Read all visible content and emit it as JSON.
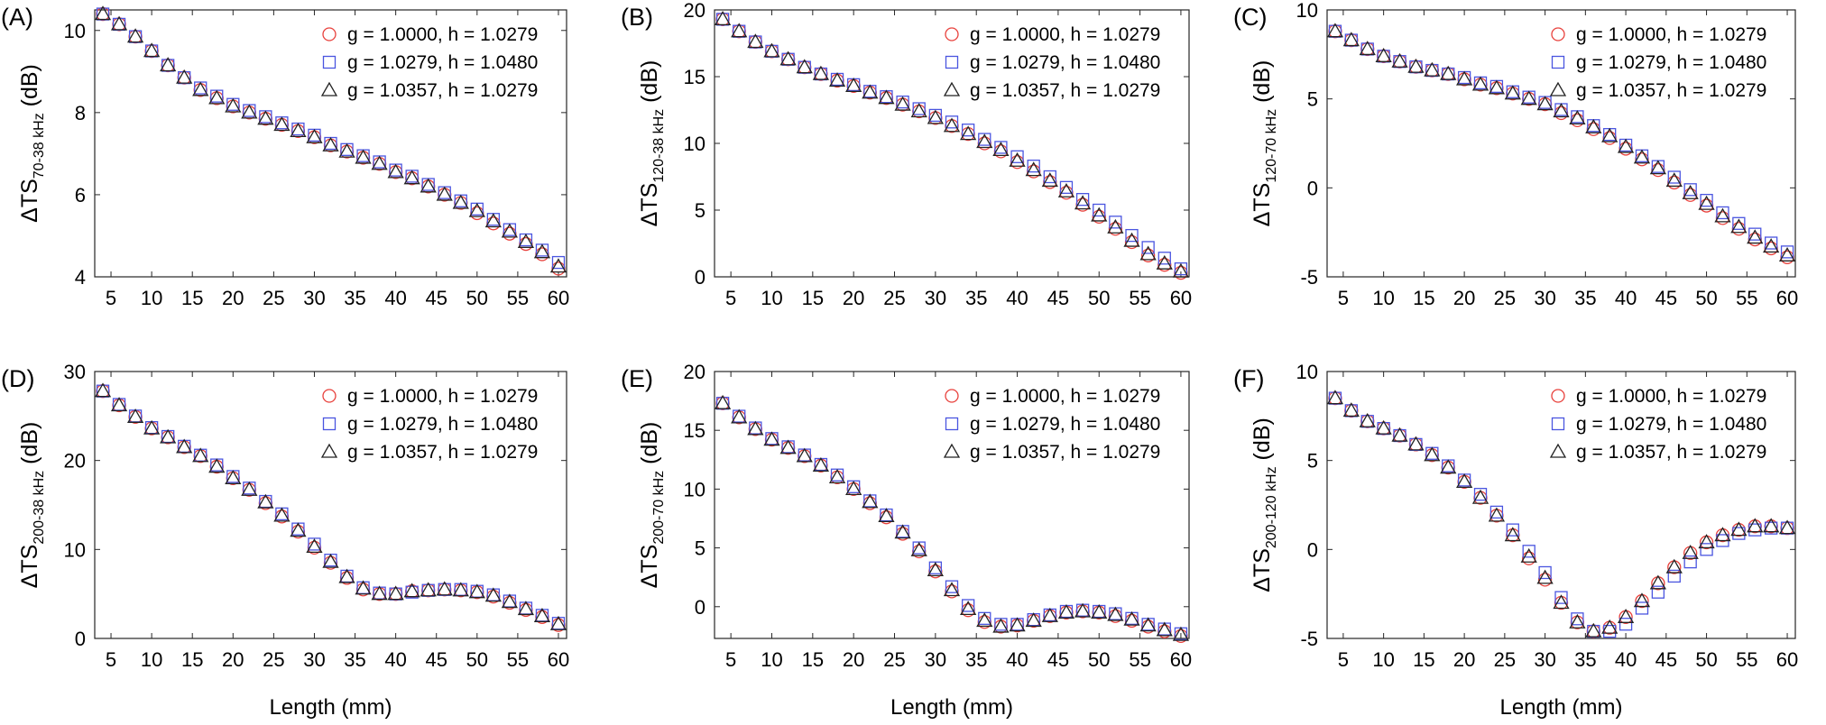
{
  "legend": [
    {
      "label": "g = 1.0000, h = 1.0279",
      "color": "#e8413c",
      "marker": "circle"
    },
    {
      "label": "g = 1.0279, h = 1.0480",
      "color": "#4a55e0",
      "marker": "square"
    },
    {
      "label": "g = 1.0357, h = 1.0279",
      "color": "#222222",
      "marker": "triangle"
    }
  ],
  "chart_data": [
    {
      "type": "scatter",
      "panel": "(A)",
      "xlabel": "",
      "ylabel_main": "ΔTS",
      "ylabel_sub": "70-38 kHz",
      "ylabel_unit": " (dB)",
      "xlim": [
        3,
        61
      ],
      "ylim": [
        4,
        10.5
      ],
      "xticks": [
        5,
        10,
        15,
        20,
        25,
        30,
        35,
        40,
        45,
        50,
        55,
        60
      ],
      "yticks": [
        4,
        6,
        8,
        10
      ],
      "x": [
        4,
        6,
        8,
        10,
        12,
        14,
        16,
        18,
        20,
        22,
        24,
        26,
        28,
        30,
        32,
        34,
        36,
        38,
        40,
        42,
        44,
        46,
        48,
        50,
        52,
        54,
        56,
        58,
        60
      ],
      "series": [
        {
          "name": "g = 1.0000, h = 1.0279",
          "values": [
            10.4,
            10.15,
            9.85,
            9.5,
            9.15,
            8.85,
            8.55,
            8.35,
            8.15,
            8.0,
            7.85,
            7.7,
            7.55,
            7.4,
            7.2,
            7.05,
            6.9,
            6.75,
            6.55,
            6.4,
            6.2,
            6.0,
            5.8,
            5.55,
            5.3,
            5.05,
            4.8,
            4.55,
            4.2
          ]
        },
        {
          "name": "g = 1.0279, h = 1.0480",
          "values": [
            10.4,
            10.15,
            9.85,
            9.5,
            9.15,
            8.85,
            8.6,
            8.4,
            8.2,
            8.05,
            7.9,
            7.75,
            7.6,
            7.45,
            7.25,
            7.1,
            6.95,
            6.8,
            6.6,
            6.45,
            6.25,
            6.05,
            5.85,
            5.65,
            5.4,
            5.15,
            4.9,
            4.65,
            4.35
          ]
        },
        {
          "name": "g = 1.0357, h = 1.0279",
          "values": [
            10.4,
            10.15,
            9.85,
            9.5,
            9.15,
            8.85,
            8.55,
            8.35,
            8.15,
            8.0,
            7.85,
            7.7,
            7.55,
            7.4,
            7.2,
            7.05,
            6.9,
            6.75,
            6.55,
            6.4,
            6.2,
            6.0,
            5.8,
            5.6,
            5.35,
            5.1,
            4.85,
            4.6,
            4.25
          ]
        }
      ]
    },
    {
      "type": "scatter",
      "panel": "(B)",
      "xlabel": "",
      "ylabel_main": "ΔTS",
      "ylabel_sub": "120-38 kHz",
      "ylabel_unit": " (dB)",
      "xlim": [
        3,
        61
      ],
      "ylim": [
        0,
        20
      ],
      "xticks": [
        5,
        10,
        15,
        20,
        25,
        30,
        35,
        40,
        45,
        50,
        55,
        60
      ],
      "yticks": [
        0,
        5,
        10,
        15,
        20
      ],
      "x": [
        4,
        6,
        8,
        10,
        12,
        14,
        16,
        18,
        20,
        22,
        24,
        26,
        28,
        30,
        32,
        34,
        36,
        38,
        40,
        42,
        44,
        46,
        48,
        50,
        52,
        54,
        56,
        58,
        60
      ],
      "series": [
        {
          "name": "g = 1.0000, h = 1.0279",
          "values": [
            19.3,
            18.4,
            17.6,
            16.9,
            16.3,
            15.7,
            15.2,
            14.7,
            14.3,
            13.8,
            13.4,
            12.9,
            12.4,
            11.9,
            11.3,
            10.7,
            10.0,
            9.4,
            8.6,
            7.9,
            7.1,
            6.3,
            5.4,
            4.5,
            3.6,
            2.6,
            1.6,
            0.9,
            0.3
          ]
        },
        {
          "name": "g = 1.0279, h = 1.0480",
          "values": [
            19.3,
            18.4,
            17.6,
            16.9,
            16.3,
            15.7,
            15.2,
            14.8,
            14.4,
            13.9,
            13.5,
            13.1,
            12.6,
            12.1,
            11.6,
            11.0,
            10.3,
            9.7,
            9.0,
            8.3,
            7.5,
            6.7,
            5.8,
            5.0,
            4.1,
            3.1,
            2.2,
            1.4,
            0.6
          ]
        },
        {
          "name": "g = 1.0357, h = 1.0279",
          "values": [
            19.3,
            18.4,
            17.6,
            16.9,
            16.3,
            15.7,
            15.2,
            14.7,
            14.3,
            13.8,
            13.4,
            12.9,
            12.4,
            11.9,
            11.3,
            10.7,
            10.1,
            9.5,
            8.7,
            8.0,
            7.2,
            6.4,
            5.5,
            4.6,
            3.7,
            2.7,
            1.7,
            1.0,
            0.4
          ]
        }
      ]
    },
    {
      "type": "scatter",
      "panel": "(C)",
      "xlabel": "",
      "ylabel_main": "ΔTS",
      "ylabel_sub": "120-70 kHz",
      "ylabel_unit": " (dB)",
      "xlim": [
        3,
        61
      ],
      "ylim": [
        -5,
        10
      ],
      "xticks": [
        5,
        10,
        15,
        20,
        25,
        30,
        35,
        40,
        45,
        50,
        55,
        60
      ],
      "yticks": [
        -5,
        0,
        5,
        10
      ],
      "x": [
        4,
        6,
        8,
        10,
        12,
        14,
        16,
        18,
        20,
        22,
        24,
        26,
        28,
        30,
        32,
        34,
        36,
        38,
        40,
        42,
        44,
        46,
        48,
        50,
        52,
        54,
        56,
        58,
        60
      ],
      "series": [
        {
          "name": "g = 1.0000, h = 1.0279",
          "values": [
            8.8,
            8.3,
            7.8,
            7.4,
            7.1,
            6.8,
            6.6,
            6.4,
            6.1,
            5.8,
            5.6,
            5.3,
            5.0,
            4.7,
            4.2,
            3.8,
            3.3,
            2.8,
            2.2,
            1.6,
            1.0,
            0.3,
            -0.4,
            -1.0,
            -1.7,
            -2.3,
            -2.9,
            -3.4,
            -3.9
          ]
        },
        {
          "name": "g = 1.0279, h = 1.0480",
          "values": [
            8.8,
            8.3,
            7.8,
            7.4,
            7.1,
            6.8,
            6.6,
            6.4,
            6.2,
            5.9,
            5.7,
            5.4,
            5.1,
            4.8,
            4.4,
            4.0,
            3.5,
            3.0,
            2.4,
            1.8,
            1.2,
            0.6,
            -0.1,
            -0.7,
            -1.4,
            -2.0,
            -2.6,
            -3.1,
            -3.6
          ]
        },
        {
          "name": "g = 1.0357, h = 1.0279",
          "values": [
            8.8,
            8.3,
            7.8,
            7.4,
            7.1,
            6.8,
            6.6,
            6.4,
            6.1,
            5.8,
            5.6,
            5.3,
            5.0,
            4.7,
            4.3,
            3.9,
            3.4,
            2.9,
            2.3,
            1.7,
            1.1,
            0.4,
            -0.3,
            -0.9,
            -1.6,
            -2.2,
            -2.8,
            -3.3,
            -3.8
          ]
        }
      ]
    },
    {
      "type": "scatter",
      "panel": "(D)",
      "xlabel": "Length (mm)",
      "ylabel_main": "ΔTS",
      "ylabel_sub": "200-38 kHz",
      "ylabel_unit": " (dB)",
      "xlim": [
        3,
        61
      ],
      "ylim": [
        0,
        30
      ],
      "xticks": [
        5,
        10,
        15,
        20,
        25,
        30,
        35,
        40,
        45,
        50,
        55,
        60
      ],
      "yticks": [
        0,
        10,
        20,
        30
      ],
      "x": [
        4,
        6,
        8,
        10,
        12,
        14,
        16,
        18,
        20,
        22,
        24,
        26,
        28,
        30,
        32,
        34,
        36,
        38,
        40,
        42,
        44,
        46,
        48,
        50,
        52,
        54,
        56,
        58,
        60
      ],
      "series": [
        {
          "name": "g = 1.0000, h = 1.0279",
          "values": [
            27.8,
            26.2,
            24.9,
            23.6,
            22.6,
            21.5,
            20.5,
            19.3,
            18.0,
            16.7,
            15.2,
            13.7,
            12.0,
            10.2,
            8.5,
            6.8,
            5.5,
            5.0,
            5.0,
            5.3,
            5.4,
            5.5,
            5.4,
            5.2,
            4.7,
            4.0,
            3.2,
            2.4,
            1.5
          ]
        },
        {
          "name": "g = 1.0279, h = 1.0480",
          "values": [
            27.8,
            26.3,
            25.0,
            23.7,
            22.7,
            21.6,
            20.6,
            19.5,
            18.2,
            16.9,
            15.4,
            14.0,
            12.3,
            10.6,
            8.8,
            7.0,
            5.7,
            5.1,
            5.0,
            5.2,
            5.4,
            5.5,
            5.5,
            5.3,
            4.9,
            4.2,
            3.4,
            2.6,
            1.7
          ]
        },
        {
          "name": "g = 1.0357, h = 1.0279",
          "values": [
            27.8,
            26.2,
            24.9,
            23.6,
            22.6,
            21.5,
            20.5,
            19.3,
            18.0,
            16.7,
            15.3,
            13.8,
            12.1,
            10.3,
            8.6,
            6.9,
            5.6,
            5.0,
            5.0,
            5.3,
            5.4,
            5.5,
            5.4,
            5.2,
            4.8,
            4.1,
            3.3,
            2.5,
            1.6
          ]
        }
      ]
    },
    {
      "type": "scatter",
      "panel": "(E)",
      "xlabel": "Length (mm)",
      "ylabel_main": "ΔTS",
      "ylabel_sub": "200-70 kHz",
      "ylabel_unit": " (dB)",
      "xlim": [
        3,
        61
      ],
      "ylim": [
        -2.7,
        20
      ],
      "xticks": [
        5,
        10,
        15,
        20,
        25,
        30,
        35,
        40,
        45,
        50,
        55,
        60
      ],
      "yticks": [
        0,
        5,
        10,
        15,
        20
      ],
      "x": [
        4,
        6,
        8,
        10,
        12,
        14,
        16,
        18,
        20,
        22,
        24,
        26,
        28,
        30,
        32,
        34,
        36,
        38,
        40,
        42,
        44,
        46,
        48,
        50,
        52,
        54,
        56,
        58,
        60
      ],
      "series": [
        {
          "name": "g = 1.0000, h = 1.0279",
          "values": [
            17.3,
            16.1,
            15.1,
            14.2,
            13.5,
            12.8,
            12.0,
            11.0,
            10.0,
            8.8,
            7.6,
            6.2,
            4.7,
            3.0,
            1.3,
            -0.3,
            -1.3,
            -1.7,
            -1.6,
            -1.2,
            -0.8,
            -0.5,
            -0.4,
            -0.5,
            -0.8,
            -1.2,
            -1.7,
            -2.1,
            -2.5
          ]
        },
        {
          "name": "g = 1.0279, h = 1.0480",
          "values": [
            17.3,
            16.2,
            15.2,
            14.3,
            13.6,
            12.9,
            12.1,
            11.2,
            10.2,
            9.0,
            7.8,
            6.4,
            5.0,
            3.3,
            1.7,
            0.1,
            -1.0,
            -1.5,
            -1.5,
            -1.1,
            -0.7,
            -0.4,
            -0.3,
            -0.4,
            -0.6,
            -1.0,
            -1.5,
            -1.9,
            -2.3
          ]
        },
        {
          "name": "g = 1.0357, h = 1.0279",
          "values": [
            17.3,
            16.1,
            15.1,
            14.2,
            13.5,
            12.8,
            12.0,
            11.0,
            10.0,
            8.9,
            7.7,
            6.3,
            4.8,
            3.1,
            1.4,
            -0.2,
            -1.2,
            -1.7,
            -1.6,
            -1.2,
            -0.8,
            -0.5,
            -0.4,
            -0.5,
            -0.7,
            -1.1,
            -1.6,
            -2.0,
            -2.4
          ]
        }
      ]
    },
    {
      "type": "scatter",
      "panel": "(F)",
      "xlabel": "Length (mm)",
      "ylabel_main": "ΔTS",
      "ylabel_sub": "200-120 kHz",
      "ylabel_unit": " (dB)",
      "xlim": [
        3,
        61
      ],
      "ylim": [
        -5,
        10
      ],
      "xticks": [
        5,
        10,
        15,
        20,
        25,
        30,
        35,
        40,
        45,
        50,
        55,
        60
      ],
      "yticks": [
        -5,
        0,
        5,
        10
      ],
      "x": [
        4,
        6,
        8,
        10,
        12,
        14,
        16,
        18,
        20,
        22,
        24,
        26,
        28,
        30,
        32,
        34,
        36,
        38,
        40,
        42,
        44,
        46,
        48,
        50,
        52,
        54,
        56,
        58,
        60
      ],
      "series": [
        {
          "name": "g = 1.0000, h = 1.0279",
          "values": [
            8.5,
            7.8,
            7.2,
            6.8,
            6.4,
            5.9,
            5.3,
            4.6,
            3.8,
            2.9,
            1.9,
            0.8,
            -0.5,
            -1.7,
            -3.0,
            -4.1,
            -4.6,
            -4.4,
            -3.8,
            -2.9,
            -1.9,
            -1.0,
            -0.2,
            0.4,
            0.8,
            1.1,
            1.3,
            1.3,
            1.2
          ]
        },
        {
          "name": "g = 1.0279, h = 1.0480",
          "values": [
            8.5,
            7.8,
            7.2,
            6.8,
            6.4,
            5.9,
            5.4,
            4.7,
            3.9,
            3.1,
            2.1,
            1.1,
            -0.1,
            -1.3,
            -2.7,
            -3.9,
            -4.6,
            -4.6,
            -4.2,
            -3.3,
            -2.4,
            -1.5,
            -0.7,
            0.0,
            0.5,
            0.9,
            1.1,
            1.2,
            1.2
          ]
        },
        {
          "name": "g = 1.0357, h = 1.0279",
          "values": [
            8.5,
            7.8,
            7.2,
            6.8,
            6.4,
            5.9,
            5.3,
            4.6,
            3.8,
            2.9,
            1.9,
            0.8,
            -0.4,
            -1.6,
            -3.0,
            -4.1,
            -4.6,
            -4.4,
            -3.8,
            -2.9,
            -1.9,
            -1.0,
            -0.2,
            0.4,
            0.8,
            1.1,
            1.3,
            1.3,
            1.2
          ]
        }
      ]
    }
  ]
}
